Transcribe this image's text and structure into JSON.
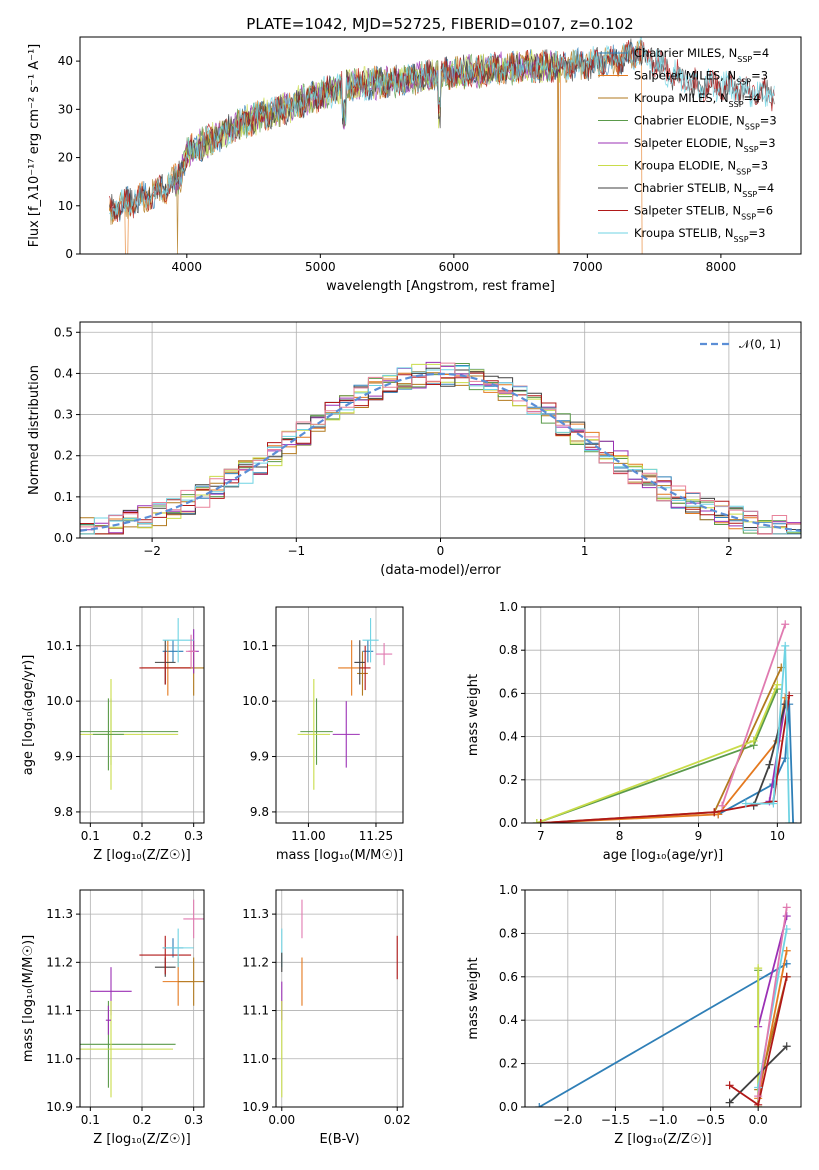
{
  "figure": {
    "title": "PLATE=1042, MJD=52725, FIBERID=0107, z=0.102"
  },
  "colors": {
    "Chabrier MILES": "#2f7fb7",
    "Salpeter MILES": "#e4791f",
    "Kroupa MILES": "#b27a1f",
    "Chabrier ELODIE": "#5a9a4a",
    "Salpeter ELODIE": "#9b30b5",
    "Kroupa ELODIE": "#c9dc4a",
    "Chabrier STELIB": "#404040",
    "Salpeter STELIB": "#b01818",
    "Kroupa STELIB": "#6fd3e3",
    "gaussian": "#5b8ed6",
    "mwZ_extra": "#e07ab0"
  },
  "chart_data": [
    {
      "id": "spectrum",
      "type": "line",
      "title": "PLATE=1042, MJD=52725, FIBERID=0107, z=0.102",
      "xlabel": "wavelength [Angstrom, rest frame]",
      "ylabel": "Flux [f_λ10⁻¹⁷ erg cm⁻² s⁻¹ A⁻¹]",
      "xlim": [
        3200,
        8600
      ],
      "ylim": [
        0,
        45
      ],
      "xticks": [
        "4000",
        "5000",
        "6000",
        "7000",
        "8000"
      ],
      "yticks": [
        "0",
        "10",
        "20",
        "30",
        "40"
      ],
      "grid": false,
      "legend_position": "top-right",
      "legend": [
        {
          "label": "Chabrier MILES, N",
          "sub": "SSP",
          "suffix": "=4"
        },
        {
          "label": "Salpeter MILES, N",
          "sub": "SSP",
          "suffix": "=3"
        },
        {
          "label": "Kroupa MILES, N",
          "sub": "SSP",
          "suffix": "=4"
        },
        {
          "label": "Chabrier ELODIE, N",
          "sub": "SSP",
          "suffix": "=3"
        },
        {
          "label": "Salpeter ELODIE, N",
          "sub": "SSP",
          "suffix": "=3"
        },
        {
          "label": "Kroupa ELODIE, N",
          "sub": "SSP",
          "suffix": "=3"
        },
        {
          "label": "Chabrier STELIB, N",
          "sub": "SSP",
          "suffix": "=4"
        },
        {
          "label": "Salpeter STELIB, N",
          "sub": "SSP",
          "suffix": "=6"
        },
        {
          "label": "Kroupa STELIB, N",
          "sub": "SSP",
          "suffix": "=3"
        }
      ],
      "continuum": [
        [
          3420,
          9
        ],
        [
          3600,
          11
        ],
        [
          3800,
          13
        ],
        [
          3950,
          16
        ],
        [
          4000,
          21
        ],
        [
          4200,
          24
        ],
        [
          4400,
          27
        ],
        [
          4600,
          29
        ],
        [
          4800,
          31
        ],
        [
          5000,
          33
        ],
        [
          5200,
          35
        ],
        [
          5400,
          35.5
        ],
        [
          5600,
          36
        ],
        [
          5800,
          37
        ],
        [
          6000,
          37.5
        ],
        [
          6200,
          38
        ],
        [
          6400,
          38.5
        ],
        [
          6600,
          39
        ],
        [
          6800,
          39
        ],
        [
          7000,
          39.5
        ],
        [
          7200,
          40
        ],
        [
          7400,
          42
        ],
        [
          7600,
          38
        ],
        [
          7800,
          35
        ],
        [
          8000,
          35
        ],
        [
          8200,
          34
        ],
        [
          8400,
          33
        ]
      ],
      "drops": [
        {
          "series": "Salpeter MILES",
          "x": [
            3540,
            3560
          ]
        },
        {
          "series": "Kroupa MILES",
          "x": [
            3925,
            3935
          ]
        },
        {
          "series": "Kroupa MILES",
          "x": [
            6775,
            6785
          ]
        },
        {
          "series": "Salpeter MILES",
          "x": [
            6785,
            6795
          ]
        },
        {
          "series": "Salpeter MILES",
          "x": [
            7410,
            7420
          ]
        }
      ]
    },
    {
      "id": "residuals",
      "type": "line",
      "xlabel": "(data-model)/error",
      "ylabel": "Normed distribution",
      "xlim": [
        -2.5,
        2.5
      ],
      "ylim": [
        0,
        0.525
      ],
      "xticks": [
        "−2",
        "−1",
        "0",
        "1",
        "2"
      ],
      "yticks": [
        "0.0",
        "0.1",
        "0.2",
        "0.3",
        "0.4",
        "0.5"
      ],
      "grid": true,
      "legend_position": "top-right",
      "legend": [
        {
          "label": "𝒩(0, 1)"
        }
      ],
      "bin_width": 0.1,
      "gaussian": {
        "mean": 0,
        "sigma": 1
      }
    },
    {
      "id": "age_vs_Z",
      "type": "scatter",
      "xlabel": "Z [log₁₀(Z/Z☉)]",
      "ylabel": "age  [log₁₀(age/yr)]",
      "xlim": [
        0.08,
        0.32
      ],
      "ylim": [
        9.78,
        10.17
      ],
      "xticks": [
        "0.1",
        "0.2",
        "0.3"
      ],
      "yticks": [
        "9.8",
        "9.9",
        "10.0",
        "10.1"
      ],
      "grid": true,
      "points": [
        {
          "series": "Chabrier MILES",
          "x": 0.26,
          "y": 10.09,
          "xerr": 0.02,
          "yerr": 0.02
        },
        {
          "series": "Salpeter MILES",
          "x": 0.25,
          "y": 10.06,
          "xerr": 0.05,
          "yerr": 0.05
        },
        {
          "series": "Kroupa MILES",
          "x": 0.3,
          "y": 10.06,
          "xerr": 0.05,
          "yerr": 0.05
        },
        {
          "series": "Chabrier ELODIE",
          "x": 0.14,
          "y": 9.945,
          "xerr": 0.13,
          "yerr": 0.06
        },
        {
          "series": "Salpeter ELODIE",
          "x": 0.3,
          "y": 10.09,
          "xerr": 0.01,
          "yerr": 0.04
        },
        {
          "series": "Kroupa ELODIE",
          "x": 0.14,
          "y": 9.94,
          "xerr": 0.13,
          "yerr": 0.1
        },
        {
          "series": "Chabrier STELIB",
          "x": 0.245,
          "y": 10.07,
          "xerr": 0.02,
          "yerr": 0.04
        },
        {
          "series": "Salpeter STELIB",
          "x": 0.245,
          "y": 10.06,
          "xerr": 0.05,
          "yerr": 0.03
        },
        {
          "series": "Kroupa STELIB",
          "x": 0.27,
          "y": 10.11,
          "xerr": 0.03,
          "yerr": 0.04
        },
        {
          "series": "Chabrier ELODIE",
          "x": 0.135,
          "y": 9.94,
          "xerr": 0.03,
          "yerr": 0.065
        },
        {
          "series": "mwZ_extra",
          "x": 0.295,
          "y": 10.09,
          "xerr": 0.01,
          "yerr": 0.03
        }
      ]
    },
    {
      "id": "age_vs_mass",
      "type": "scatter",
      "xlabel": "mass [log₁₀(M/M☉)]",
      "ylabel": "",
      "xlim": [
        10.88,
        11.35
      ],
      "ylim": [
        9.78,
        10.17
      ],
      "xticks": [
        "11.00",
        "11.25"
      ],
      "yticks": [
        "9.8",
        "9.9",
        "10.0",
        "10.1"
      ],
      "grid": true,
      "points": [
        {
          "series": "Chabrier MILES",
          "x": 11.22,
          "y": 10.09,
          "xerr": 0.02,
          "yerr": 0.02
        },
        {
          "series": "Salpeter MILES",
          "x": 11.16,
          "y": 10.06,
          "xerr": 0.05,
          "yerr": 0.05
        },
        {
          "series": "Kroupa MILES",
          "x": 11.2,
          "y": 10.05,
          "xerr": 0.02,
          "yerr": 0.04
        },
        {
          "series": "Chabrier ELODIE",
          "x": 11.03,
          "y": 9.945,
          "xerr": 0.06,
          "yerr": 0.06
        },
        {
          "series": "Salpeter ELODIE",
          "x": 11.14,
          "y": 9.94,
          "xerr": 0.05,
          "yerr": 0.06
        },
        {
          "series": "Kroupa ELODIE",
          "x": 11.02,
          "y": 9.94,
          "xerr": 0.06,
          "yerr": 0.1
        },
        {
          "series": "Chabrier STELIB",
          "x": 11.19,
          "y": 10.07,
          "xerr": 0.02,
          "yerr": 0.04
        },
        {
          "series": "Salpeter STELIB",
          "x": 11.21,
          "y": 10.06,
          "xerr": 0.02,
          "yerr": 0.04
        },
        {
          "series": "Kroupa STELIB",
          "x": 11.23,
          "y": 10.11,
          "xerr": 0.03,
          "yerr": 0.04
        },
        {
          "series": "mwZ_extra",
          "x": 11.28,
          "y": 10.085,
          "xerr": 0.03,
          "yerr": 0.02
        }
      ]
    },
    {
      "id": "mass_weight_vs_age",
      "type": "line",
      "xlabel": "age  [log₁₀(age/yr)]",
      "ylabel": "mass weight",
      "xlim": [
        6.8,
        10.3
      ],
      "ylim": [
        0,
        1.0
      ],
      "xticks": [
        "7",
        "8",
        "9",
        "10"
      ],
      "yticks": [
        "0.0",
        "0.2",
        "0.4",
        "0.6",
        "0.8",
        "1.0"
      ],
      "grid": true,
      "series": [
        {
          "name": "Chabrier MILES",
          "points": [
            [
              9.25,
              0.04
            ],
            [
              9.95,
              0.18
            ],
            [
              10.1,
              0.3
            ],
            [
              10.15,
              0.55
            ],
            [
              10.2,
              0.0
            ]
          ]
        },
        {
          "name": "Salpeter MILES",
          "points": [
            [
              7.0,
              0.0
            ],
            [
              9.25,
              0.04
            ],
            [
              10.0,
              0.38
            ],
            [
              10.1,
              0.58
            ]
          ]
        },
        {
          "name": "Kroupa MILES",
          "points": [
            [
              7.0,
              0.0
            ],
            [
              9.2,
              0.05
            ],
            [
              10.05,
              0.72
            ]
          ]
        },
        {
          "name": "Chabrier ELODIE",
          "points": [
            [
              6.95,
              0.0
            ],
            [
              9.7,
              0.36
            ],
            [
              10.0,
              0.62
            ]
          ]
        },
        {
          "name": "Salpeter ELODIE",
          "points": [
            [
              9.9,
              0.1
            ],
            [
              10.1,
              0.55
            ]
          ]
        },
        {
          "name": "Kroupa ELODIE",
          "points": [
            [
              6.95,
              0.0
            ],
            [
              9.7,
              0.38
            ],
            [
              10.0,
              0.64
            ]
          ]
        },
        {
          "name": "Chabrier STELIB",
          "points": [
            [
              9.7,
              0.08
            ],
            [
              9.9,
              0.27
            ],
            [
              10.1,
              0.55
            ]
          ]
        },
        {
          "name": "Salpeter STELIB",
          "points": [
            [
              7.0,
              0.0
            ],
            [
              9.2,
              0.05
            ],
            [
              9.95,
              0.1
            ],
            [
              10.15,
              0.59
            ]
          ]
        },
        {
          "name": "Kroupa STELIB",
          "points": [
            [
              9.6,
              0.09
            ],
            [
              9.95,
              0.09
            ],
            [
              10.1,
              0.82
            ],
            [
              10.15,
              0.0
            ]
          ]
        },
        {
          "name": "mwZ_extra",
          "points": [
            [
              9.3,
              0.08
            ],
            [
              10.1,
              0.92
            ]
          ]
        }
      ]
    },
    {
      "id": "mass_vs_Z",
      "type": "scatter",
      "xlabel": "Z [log₁₀(Z/Z☉)]",
      "ylabel": "mass [log₁₀(M/M☉)]",
      "xlim": [
        0.08,
        0.32
      ],
      "ylim": [
        10.9,
        11.35
      ],
      "xticks": [
        "0.1",
        "0.2",
        "0.3"
      ],
      "yticks": [
        "10.9",
        "11.0",
        "11.1",
        "11.2",
        "11.3"
      ],
      "grid": true,
      "points": [
        {
          "series": "Chabrier MILES",
          "x": 0.26,
          "y": 11.23,
          "xerr": 0.02,
          "yerr": 0.02
        },
        {
          "series": "Salpeter MILES",
          "x": 0.27,
          "y": 11.16,
          "xerr": 0.03,
          "yerr": 0.05
        },
        {
          "series": "Kroupa MILES",
          "x": 0.3,
          "y": 11.16,
          "xerr": 0.03,
          "yerr": 0.05
        },
        {
          "series": "Chabrier ELODIE",
          "x": 0.135,
          "y": 11.03,
          "xerr": 0.13,
          "yerr": 0.09
        },
        {
          "series": "Salpeter ELODIE",
          "x": 0.14,
          "y": 11.14,
          "xerr": 0.04,
          "yerr": 0.05
        },
        {
          "series": "Kroupa ELODIE",
          "x": 0.14,
          "y": 11.02,
          "xerr": 0.12,
          "yerr": 0.1
        },
        {
          "series": "Chabrier STELIB",
          "x": 0.245,
          "y": 11.19,
          "xerr": 0.02,
          "yerr": 0.02
        },
        {
          "series": "Salpeter STELIB",
          "x": 0.245,
          "y": 11.215,
          "xerr": 0.05,
          "yerr": 0.04
        },
        {
          "series": "Kroupa STELIB",
          "x": 0.27,
          "y": 11.23,
          "xerr": 0.03,
          "yerr": 0.04
        },
        {
          "series": "Salpeter ELODIE",
          "x": 0.135,
          "y": 11.08,
          "xerr": 0.005,
          "yerr": 0.03
        },
        {
          "series": "mwZ_extra",
          "x": 0.3,
          "y": 11.29,
          "xerr": 0.02,
          "yerr": 0.04
        }
      ]
    },
    {
      "id": "mass_vs_ebv",
      "type": "scatter",
      "xlabel": "E(B-V)",
      "ylabel": "",
      "xlim": [
        -0.001,
        0.021
      ],
      "ylim": [
        10.9,
        11.35
      ],
      "xticks": [
        "0.00",
        "0.02"
      ],
      "yticks": [
        "10.9",
        "11.0",
        "11.1",
        "11.2",
        "11.3"
      ],
      "grid": true,
      "points": [
        {
          "series": "Kroupa STELIB",
          "x": 0.0,
          "y": 11.23,
          "xerr": 0.0,
          "yerr": 0.04
        },
        {
          "series": "Salpeter ELODIE",
          "x": 0.0,
          "y": 11.12,
          "xerr": 0.0,
          "yerr": 0.04
        },
        {
          "series": "Kroupa ELODIE",
          "x": 0.0,
          "y": 11.02,
          "xerr": 0.0,
          "yerr": 0.1
        },
        {
          "series": "Chabrier STELIB",
          "x": 0.0,
          "y": 11.2,
          "xerr": 0.0,
          "yerr": 0.02
        },
        {
          "series": "Salpeter MILES",
          "x": 0.0035,
          "y": 11.16,
          "xerr": 0.0,
          "yerr": 0.05
        },
        {
          "series": "mwZ_extra",
          "x": 0.0035,
          "y": 11.29,
          "xerr": 0.0,
          "yerr": 0.04
        },
        {
          "series": "Salpeter STELIB",
          "x": 0.02,
          "y": 11.21,
          "xerr": 0.0,
          "yerr": 0.045
        }
      ]
    },
    {
      "id": "mass_weight_vs_Z",
      "type": "line",
      "xlabel": "Z [log₁₀(Z/Z☉)]",
      "ylabel": "mass weight",
      "xlim": [
        -2.45,
        0.45
      ],
      "ylim": [
        0,
        1.0
      ],
      "xticks": [
        "−2.0",
        "−1.5",
        "−1.0",
        "−0.5",
        "0.0"
      ],
      "yticks": [
        "0.0",
        "0.2",
        "0.4",
        "0.6",
        "0.8",
        "1.0"
      ],
      "grid": true,
      "series": [
        {
          "name": "Chabrier MILES",
          "points": [
            [
              -2.3,
              0.0
            ],
            [
              0.3,
              0.66
            ]
          ]
        },
        {
          "name": "Salpeter MILES",
          "points": [
            [
              0.0,
              0.04
            ],
            [
              0.3,
              0.72
            ]
          ]
        },
        {
          "name": "Kroupa MILES",
          "points": [
            [
              0.0,
              0.08
            ],
            [
              0.3,
              0.6
            ]
          ]
        },
        {
          "name": "Chabrier ELODIE",
          "points": [
            [
              0.0,
              0.0
            ],
            [
              0.0,
              0.63
            ]
          ]
        },
        {
          "name": "Salpeter ELODIE",
          "points": [
            [
              0.0,
              0.37
            ],
            [
              0.3,
              0.88
            ]
          ]
        },
        {
          "name": "Kroupa ELODIE",
          "points": [
            [
              0.0,
              0.0
            ],
            [
              0.0,
              0.64
            ]
          ]
        },
        {
          "name": "Chabrier STELIB",
          "points": [
            [
              -0.3,
              0.02
            ],
            [
              0.3,
              0.28
            ]
          ]
        },
        {
          "name": "Salpeter STELIB",
          "points": [
            [
              -0.3,
              0.1
            ],
            [
              0.0,
              0.01
            ],
            [
              0.3,
              0.6
            ]
          ]
        },
        {
          "name": "Kroupa STELIB",
          "points": [
            [
              0.0,
              0.09
            ],
            [
              0.3,
              0.82
            ]
          ]
        },
        {
          "name": "mwZ_extra",
          "points": [
            [
              0.0,
              0.05
            ],
            [
              0.3,
              0.92
            ]
          ]
        }
      ]
    }
  ]
}
